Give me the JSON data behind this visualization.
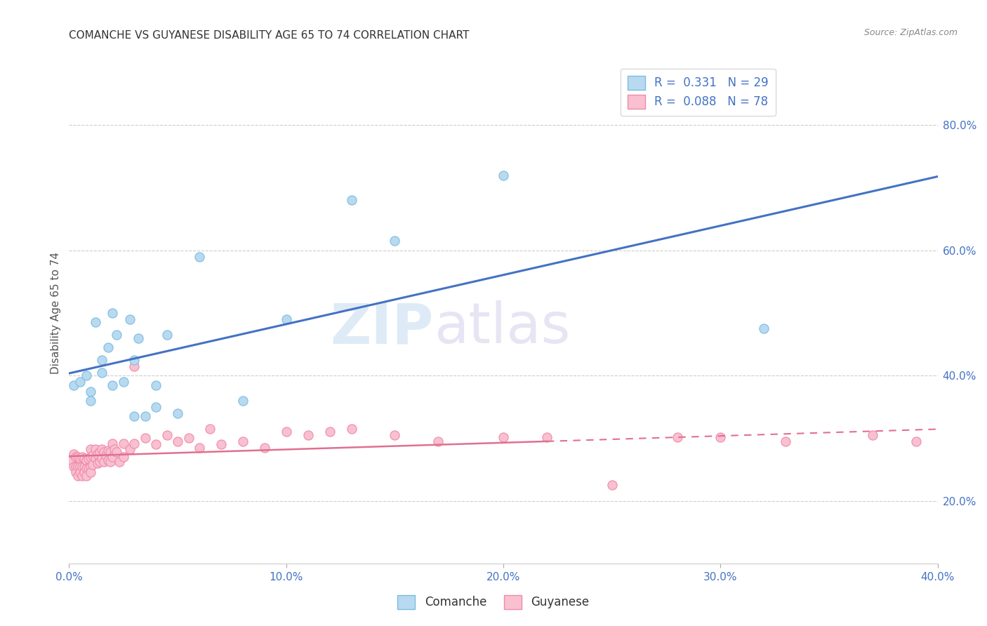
{
  "title": "COMANCHE VS GUYANESE DISABILITY AGE 65 TO 74 CORRELATION CHART",
  "source": "Source: ZipAtlas.com",
  "ylabel": "Disability Age 65 to 74",
  "xlim": [
    0.0,
    0.4
  ],
  "ylim": [
    0.1,
    0.9
  ],
  "xtick_labels": [
    "0.0%",
    "10.0%",
    "20.0%",
    "30.0%",
    "40.0%"
  ],
  "xtick_vals": [
    0.0,
    0.1,
    0.2,
    0.3,
    0.4
  ],
  "ytick_labels_right": [
    "20.0%",
    "40.0%",
    "60.0%",
    "80.0%"
  ],
  "ytick_vals_right": [
    0.2,
    0.4,
    0.6,
    0.8
  ],
  "comanche_R": 0.331,
  "comanche_N": 29,
  "guyanese_R": 0.088,
  "guyanese_N": 78,
  "comanche_color": "#7abde0",
  "comanche_color_fill": "#b8d9f0",
  "guyanese_color": "#f08aaa",
  "guyanese_color_fill": "#f8c0d0",
  "line_blue": "#4472c4",
  "line_pink": "#e07090",
  "watermark_zip": "ZIP",
  "watermark_atlas": "atlas",
  "comanche_x": [
    0.002,
    0.005,
    0.008,
    0.01,
    0.01,
    0.012,
    0.015,
    0.015,
    0.018,
    0.02,
    0.02,
    0.022,
    0.025,
    0.028,
    0.03,
    0.03,
    0.032,
    0.035,
    0.04,
    0.04,
    0.045,
    0.05,
    0.06,
    0.08,
    0.1,
    0.13,
    0.15,
    0.2,
    0.32
  ],
  "comanche_y": [
    0.385,
    0.39,
    0.4,
    0.375,
    0.36,
    0.485,
    0.425,
    0.405,
    0.445,
    0.385,
    0.5,
    0.465,
    0.39,
    0.49,
    0.425,
    0.335,
    0.46,
    0.335,
    0.385,
    0.35,
    0.465,
    0.34,
    0.59,
    0.36,
    0.49,
    0.68,
    0.615,
    0.72,
    0.475
  ],
  "guyanese_x": [
    0.001,
    0.002,
    0.002,
    0.003,
    0.003,
    0.003,
    0.004,
    0.004,
    0.004,
    0.005,
    0.005,
    0.005,
    0.006,
    0.006,
    0.006,
    0.007,
    0.007,
    0.007,
    0.008,
    0.008,
    0.008,
    0.009,
    0.009,
    0.01,
    0.01,
    0.01,
    0.01,
    0.011,
    0.011,
    0.012,
    0.012,
    0.013,
    0.013,
    0.014,
    0.014,
    0.015,
    0.015,
    0.016,
    0.016,
    0.017,
    0.018,
    0.018,
    0.019,
    0.019,
    0.02,
    0.02,
    0.021,
    0.022,
    0.023,
    0.025,
    0.025,
    0.028,
    0.03,
    0.03,
    0.035,
    0.04,
    0.045,
    0.05,
    0.055,
    0.06,
    0.065,
    0.07,
    0.08,
    0.09,
    0.1,
    0.11,
    0.12,
    0.13,
    0.15,
    0.17,
    0.2,
    0.22,
    0.25,
    0.28,
    0.3,
    0.33,
    0.37,
    0.39
  ],
  "guyanese_y": [
    0.265,
    0.275,
    0.255,
    0.27,
    0.255,
    0.245,
    0.27,
    0.255,
    0.24,
    0.268,
    0.255,
    0.245,
    0.27,
    0.255,
    0.24,
    0.268,
    0.255,
    0.245,
    0.265,
    0.252,
    0.24,
    0.268,
    0.252,
    0.282,
    0.27,
    0.255,
    0.245,
    0.272,
    0.258,
    0.282,
    0.268,
    0.275,
    0.26,
    0.278,
    0.262,
    0.282,
    0.268,
    0.278,
    0.262,
    0.272,
    0.28,
    0.265,
    0.278,
    0.262,
    0.292,
    0.27,
    0.282,
    0.278,
    0.262,
    0.292,
    0.27,
    0.282,
    0.292,
    0.415,
    0.3,
    0.29,
    0.305,
    0.295,
    0.3,
    0.285,
    0.315,
    0.29,
    0.295,
    0.285,
    0.31,
    0.305,
    0.31,
    0.315,
    0.305,
    0.295,
    0.302,
    0.302,
    0.225,
    0.302,
    0.302,
    0.295,
    0.305,
    0.295
  ]
}
